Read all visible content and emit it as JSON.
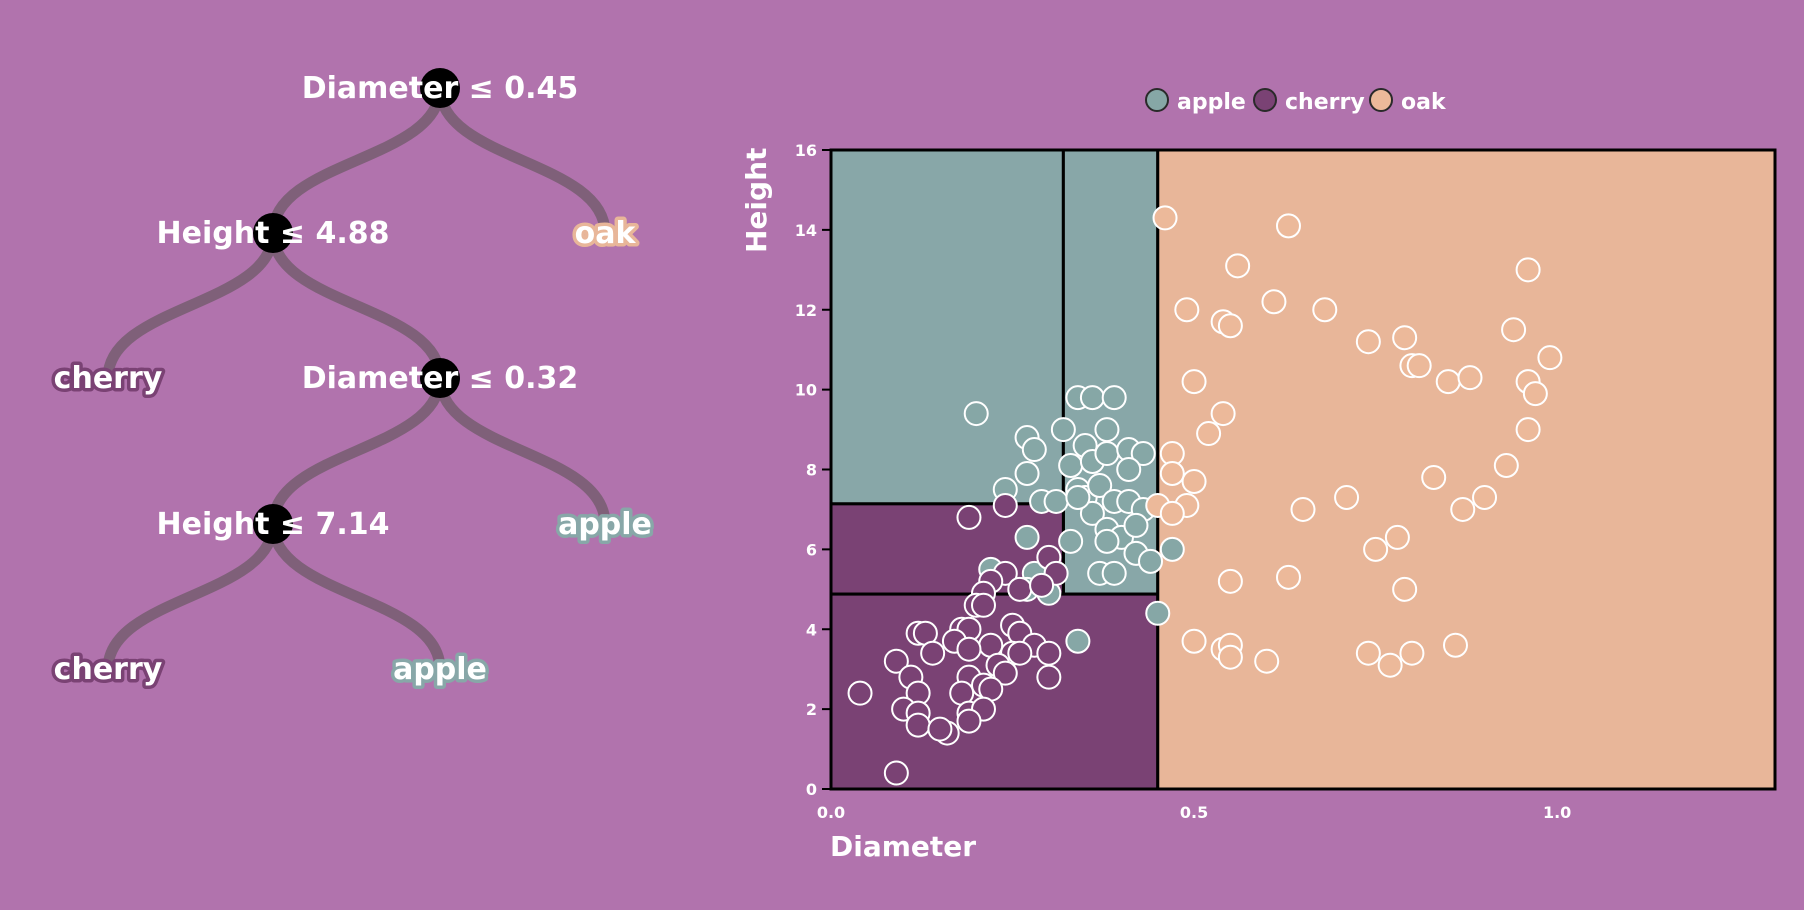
{
  "tree": {
    "nodes": [
      {
        "id": "n0",
        "label": "Diameter ≤ 0.45",
        "type": "split"
      },
      {
        "id": "n1",
        "label": "Height ≤ 4.88",
        "type": "split"
      },
      {
        "id": "n2",
        "label": "oak",
        "type": "leaf",
        "class": "oak"
      },
      {
        "id": "n3",
        "label": "cherry",
        "type": "leaf",
        "class": "cherry"
      },
      {
        "id": "n4",
        "label": "Diameter ≤ 0.32",
        "type": "split"
      },
      {
        "id": "n5",
        "label": "Height ≤ 7.14",
        "type": "split"
      },
      {
        "id": "n6",
        "label": "apple",
        "type": "leaf",
        "class": "apple"
      },
      {
        "id": "n7",
        "label": "cherry",
        "type": "leaf",
        "class": "cherry"
      },
      {
        "id": "n8",
        "label": "apple",
        "type": "leaf",
        "class": "apple"
      }
    ],
    "edges": [
      [
        "n0",
        "n1"
      ],
      [
        "n0",
        "n2"
      ],
      [
        "n1",
        "n3"
      ],
      [
        "n1",
        "n4"
      ],
      [
        "n4",
        "n5"
      ],
      [
        "n4",
        "n6"
      ],
      [
        "n5",
        "n7"
      ],
      [
        "n5",
        "n8"
      ]
    ]
  },
  "colors": {
    "background": "#b173ad",
    "apple": "#88a7a8",
    "cherry": "#7a4274",
    "oak": "#e8b699",
    "apple_point": "#86a7a6",
    "cherry_point": "#7a4274",
    "oak_point": "#ecb99a",
    "edge": "#7f6079"
  },
  "chart_data": {
    "type": "scatter",
    "xlabel": "Diameter",
    "ylabel": "Height",
    "xlim": [
      0,
      1.3
    ],
    "ylim": [
      0,
      16
    ],
    "xticks": [
      "0.0",
      "0.5",
      "1.0"
    ],
    "xtick_values": [
      0,
      0.5,
      1.0
    ],
    "yticks": [
      "0",
      "2",
      "4",
      "6",
      "8",
      "10",
      "12",
      "14",
      "16"
    ],
    "ytick_values": [
      0,
      2,
      4,
      6,
      8,
      10,
      12,
      14,
      16
    ],
    "legend": [
      {
        "name": "apple",
        "color": "#86a7a6"
      },
      {
        "name": "cherry",
        "color": "#7a4274"
      },
      {
        "name": "oak",
        "color": "#ecb99a"
      }
    ],
    "legend_position": "top-center",
    "regions": [
      {
        "class": "apple",
        "x": [
          0,
          0.32
        ],
        "y": [
          7.14,
          16
        ]
      },
      {
        "class": "apple",
        "x": [
          0.32,
          0.45
        ],
        "y": [
          4.88,
          16
        ]
      },
      {
        "class": "cherry",
        "x": [
          0,
          0.32
        ],
        "y": [
          4.88,
          7.14
        ]
      },
      {
        "class": "cherry",
        "x": [
          0,
          0.45
        ],
        "y": [
          0,
          4.88
        ]
      },
      {
        "class": "oak",
        "x": [
          0.45,
          1.3
        ],
        "y": [
          0,
          16
        ]
      }
    ],
    "series": [
      {
        "name": "apple",
        "points": [
          [
            0.2,
            9.4
          ],
          [
            0.34,
            9.8
          ],
          [
            0.36,
            9.8
          ],
          [
            0.39,
            9.8
          ],
          [
            0.32,
            9.0
          ],
          [
            0.35,
            8.6
          ],
          [
            0.38,
            9.0
          ],
          [
            0.27,
            8.8
          ],
          [
            0.28,
            8.5
          ],
          [
            0.33,
            8.1
          ],
          [
            0.36,
            8.2
          ],
          [
            0.38,
            8.4
          ],
          [
            0.41,
            8.5
          ],
          [
            0.43,
            8.4
          ],
          [
            0.41,
            8.0
          ],
          [
            0.24,
            7.5
          ],
          [
            0.27,
            7.9
          ],
          [
            0.29,
            7.2
          ],
          [
            0.31,
            7.2
          ],
          [
            0.34,
            7.5
          ],
          [
            0.35,
            7.3
          ],
          [
            0.37,
            7.6
          ],
          [
            0.39,
            7.2
          ],
          [
            0.41,
            7.2
          ],
          [
            0.43,
            7.0
          ],
          [
            0.36,
            6.9
          ],
          [
            0.38,
            6.5
          ],
          [
            0.4,
            6.3
          ],
          [
            0.42,
            6.6
          ],
          [
            0.33,
            6.2
          ],
          [
            0.38,
            6.2
          ],
          [
            0.42,
            5.9
          ],
          [
            0.27,
            6.3
          ],
          [
            0.44,
            5.7
          ],
          [
            0.22,
            5.5
          ],
          [
            0.28,
            5.4
          ],
          [
            0.3,
            4.9
          ],
          [
            0.27,
            5.0
          ],
          [
            0.37,
            5.4
          ],
          [
            0.39,
            5.4
          ],
          [
            0.47,
            6.0
          ],
          [
            0.45,
            4.4
          ],
          [
            0.34,
            3.7
          ],
          [
            0.34,
            7.3
          ]
        ]
      },
      {
        "name": "cherry",
        "points": [
          [
            0.24,
            7.1
          ],
          [
            0.19,
            6.8
          ],
          [
            0.3,
            5.8
          ],
          [
            0.31,
            5.4
          ],
          [
            0.24,
            5.4
          ],
          [
            0.22,
            5.2
          ],
          [
            0.26,
            5.0
          ],
          [
            0.29,
            5.1
          ],
          [
            0.21,
            4.9
          ],
          [
            0.2,
            4.6
          ],
          [
            0.21,
            4.6
          ],
          [
            0.25,
            4.1
          ],
          [
            0.26,
            3.9
          ],
          [
            0.18,
            4.0
          ],
          [
            0.19,
            4.0
          ],
          [
            0.12,
            3.9
          ],
          [
            0.13,
            3.9
          ],
          [
            0.17,
            3.7
          ],
          [
            0.22,
            3.6
          ],
          [
            0.28,
            3.6
          ],
          [
            0.3,
            3.4
          ],
          [
            0.25,
            3.4
          ],
          [
            0.26,
            3.4
          ],
          [
            0.19,
            3.5
          ],
          [
            0.14,
            3.4
          ],
          [
            0.09,
            3.2
          ],
          [
            0.23,
            3.1
          ],
          [
            0.11,
            2.8
          ],
          [
            0.19,
            2.8
          ],
          [
            0.24,
            2.9
          ],
          [
            0.21,
            2.6
          ],
          [
            0.18,
            2.4
          ],
          [
            0.22,
            2.5
          ],
          [
            0.3,
            2.8
          ],
          [
            0.04,
            2.4
          ],
          [
            0.12,
            2.4
          ],
          [
            0.1,
            2.0
          ],
          [
            0.12,
            1.9
          ],
          [
            0.19,
            1.9
          ],
          [
            0.21,
            2.0
          ],
          [
            0.12,
            1.6
          ],
          [
            0.16,
            1.4
          ],
          [
            0.19,
            1.7
          ],
          [
            0.15,
            1.5
          ],
          [
            0.09,
            0.4
          ]
        ]
      },
      {
        "name": "oak",
        "points": [
          [
            0.46,
            14.3
          ],
          [
            0.63,
            14.1
          ],
          [
            0.56,
            13.1
          ],
          [
            0.96,
            13.0
          ],
          [
            0.49,
            12.0
          ],
          [
            0.61,
            12.2
          ],
          [
            0.68,
            12.0
          ],
          [
            0.54,
            11.7
          ],
          [
            0.55,
            11.6
          ],
          [
            0.74,
            11.2
          ],
          [
            0.79,
            11.3
          ],
          [
            0.94,
            11.5
          ],
          [
            0.8,
            10.6
          ],
          [
            0.81,
            10.6
          ],
          [
            0.99,
            10.8
          ],
          [
            0.85,
            10.2
          ],
          [
            0.88,
            10.3
          ],
          [
            0.96,
            10.2
          ],
          [
            0.97,
            9.9
          ],
          [
            0.5,
            10.2
          ],
          [
            0.54,
            9.4
          ],
          [
            0.52,
            8.9
          ],
          [
            0.96,
            9.0
          ],
          [
            0.47,
            8.4
          ],
          [
            0.47,
            7.9
          ],
          [
            0.5,
            7.7
          ],
          [
            0.45,
            7.1
          ],
          [
            0.49,
            7.1
          ],
          [
            0.47,
            6.9
          ],
          [
            0.65,
            7.0
          ],
          [
            0.71,
            7.3
          ],
          [
            0.83,
            7.8
          ],
          [
            0.93,
            8.1
          ],
          [
            0.87,
            7.0
          ],
          [
            0.9,
            7.3
          ],
          [
            0.75,
            6.0
          ],
          [
            0.78,
            6.3
          ],
          [
            0.63,
            5.3
          ],
          [
            0.55,
            5.2
          ],
          [
            0.79,
            5.0
          ],
          [
            0.5,
            3.7
          ],
          [
            0.54,
            3.5
          ],
          [
            0.55,
            3.6
          ],
          [
            0.55,
            3.3
          ],
          [
            0.6,
            3.2
          ],
          [
            0.74,
            3.4
          ],
          [
            0.77,
            3.1
          ],
          [
            0.8,
            3.4
          ],
          [
            0.86,
            3.6
          ]
        ]
      }
    ]
  }
}
